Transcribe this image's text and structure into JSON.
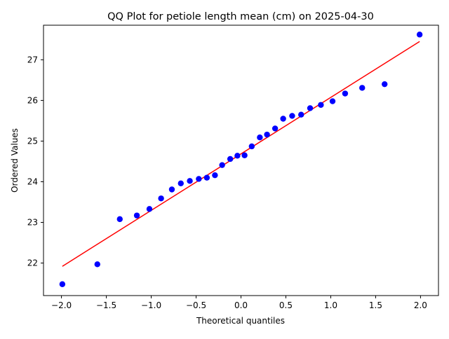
{
  "chart_data": {
    "type": "scatter",
    "title": "QQ Plot for petiole length mean (cm) on 2025-04-30",
    "xlabel": "Theoretical quantiles",
    "ylabel": "Ordered Values",
    "xlim": [
      -2.2,
      2.2
    ],
    "ylim": [
      21.2,
      27.85
    ],
    "x_ticks": [
      -2.0,
      -1.5,
      -1.0,
      -0.5,
      0.0,
      0.5,
      1.0,
      1.5,
      2.0
    ],
    "x_tick_labels": [
      "−2.0",
      "−1.5",
      "−1.0",
      "−0.5",
      "0.0",
      "0.5",
      "1.0",
      "1.5",
      "2.0"
    ],
    "y_ticks": [
      22,
      23,
      24,
      25,
      26,
      27
    ],
    "y_tick_labels": [
      "22",
      "23",
      "24",
      "25",
      "26",
      "27"
    ],
    "grid": false,
    "legend": "none",
    "points_color": "#0000ff",
    "line_color": "#ff0000",
    "series": [
      {
        "kind": "points",
        "x": [
          -1.99,
          -1.6,
          -1.35,
          -1.16,
          -1.02,
          -0.89,
          -0.77,
          -0.67,
          -0.57,
          -0.47,
          -0.38,
          -0.29,
          -0.21,
          -0.12,
          -0.04,
          0.04,
          0.12,
          0.21,
          0.29,
          0.38,
          0.47,
          0.57,
          0.67,
          0.77,
          0.89,
          1.02,
          1.16,
          1.35,
          1.6,
          1.99
        ],
        "y": [
          21.48,
          21.97,
          23.08,
          23.17,
          23.33,
          23.59,
          23.81,
          23.96,
          24.02,
          24.07,
          24.1,
          24.16,
          24.41,
          24.56,
          24.64,
          24.65,
          24.87,
          25.09,
          25.16,
          25.31,
          25.55,
          25.62,
          25.65,
          25.81,
          25.89,
          25.98,
          26.17,
          26.31,
          26.4,
          27.62
        ]
      },
      {
        "kind": "fit-line",
        "x": [
          -1.99,
          1.99
        ],
        "y": [
          21.92,
          27.45
        ]
      }
    ]
  }
}
